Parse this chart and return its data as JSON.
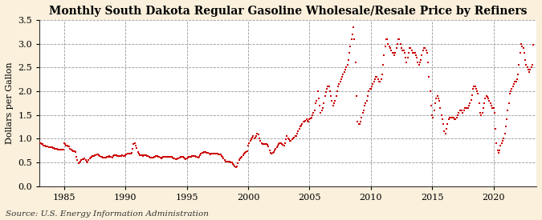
{
  "title": "Monthly South Dakota Regular Gasoline Wholesale/Resale Price by Refiners",
  "ylabel": "Dollars per Gallon",
  "source": "Source: U.S. Energy Information Administration",
  "xlim": [
    1983.0,
    2023.5
  ],
  "ylim": [
    0.0,
    3.5
  ],
  "yticks": [
    0.0,
    0.5,
    1.0,
    1.5,
    2.0,
    2.5,
    3.0,
    3.5
  ],
  "xticks": [
    1985,
    1990,
    1995,
    2000,
    2005,
    2010,
    2015,
    2020
  ],
  "bg_color": "#FAF0DC",
  "plot_bg_color": "#FFFFFF",
  "marker_color": "#CC0000",
  "marker": "s",
  "marker_size": 4.5,
  "title_fontsize": 10,
  "label_fontsize": 8,
  "tick_fontsize": 8,
  "source_fontsize": 7.5,
  "data": [
    [
      1983.0,
      0.92
    ],
    [
      1983.083,
      0.91
    ],
    [
      1983.167,
      0.89
    ],
    [
      1983.25,
      0.88
    ],
    [
      1983.333,
      0.86
    ],
    [
      1983.417,
      0.85
    ],
    [
      1983.5,
      0.84
    ],
    [
      1983.583,
      0.83
    ],
    [
      1983.667,
      0.83
    ],
    [
      1983.75,
      0.82
    ],
    [
      1983.833,
      0.82
    ],
    [
      1983.917,
      0.81
    ],
    [
      1984.0,
      0.81
    ],
    [
      1984.083,
      0.8
    ],
    [
      1984.167,
      0.8
    ],
    [
      1984.25,
      0.79
    ],
    [
      1984.333,
      0.78
    ],
    [
      1984.417,
      0.78
    ],
    [
      1984.5,
      0.77
    ],
    [
      1984.583,
      0.76
    ],
    [
      1984.667,
      0.76
    ],
    [
      1984.75,
      0.76
    ],
    [
      1984.833,
      0.76
    ],
    [
      1984.917,
      0.76
    ],
    [
      1985.0,
      0.9
    ],
    [
      1985.083,
      0.88
    ],
    [
      1985.167,
      0.86
    ],
    [
      1985.25,
      0.85
    ],
    [
      1985.333,
      0.84
    ],
    [
      1985.417,
      0.83
    ],
    [
      1985.5,
      0.78
    ],
    [
      1985.583,
      0.76
    ],
    [
      1985.667,
      0.75
    ],
    [
      1985.75,
      0.74
    ],
    [
      1985.833,
      0.73
    ],
    [
      1985.917,
      0.72
    ],
    [
      1986.0,
      0.62
    ],
    [
      1986.083,
      0.55
    ],
    [
      1986.167,
      0.48
    ],
    [
      1986.25,
      0.5
    ],
    [
      1986.333,
      0.52
    ],
    [
      1986.417,
      0.54
    ],
    [
      1986.5,
      0.56
    ],
    [
      1986.583,
      0.57
    ],
    [
      1986.667,
      0.58
    ],
    [
      1986.75,
      0.55
    ],
    [
      1986.833,
      0.52
    ],
    [
      1986.917,
      0.5
    ],
    [
      1987.0,
      0.55
    ],
    [
      1987.083,
      0.58
    ],
    [
      1987.167,
      0.6
    ],
    [
      1987.25,
      0.62
    ],
    [
      1987.333,
      0.63
    ],
    [
      1987.417,
      0.64
    ],
    [
      1987.5,
      0.65
    ],
    [
      1987.583,
      0.65
    ],
    [
      1987.667,
      0.66
    ],
    [
      1987.75,
      0.67
    ],
    [
      1987.833,
      0.65
    ],
    [
      1987.917,
      0.63
    ],
    [
      1988.0,
      0.62
    ],
    [
      1988.083,
      0.61
    ],
    [
      1988.167,
      0.6
    ],
    [
      1988.25,
      0.6
    ],
    [
      1988.333,
      0.6
    ],
    [
      1988.417,
      0.6
    ],
    [
      1988.5,
      0.61
    ],
    [
      1988.583,
      0.62
    ],
    [
      1988.667,
      0.63
    ],
    [
      1988.75,
      0.62
    ],
    [
      1988.833,
      0.61
    ],
    [
      1988.917,
      0.6
    ],
    [
      1989.0,
      0.63
    ],
    [
      1989.083,
      0.65
    ],
    [
      1989.167,
      0.65
    ],
    [
      1989.25,
      0.65
    ],
    [
      1989.333,
      0.64
    ],
    [
      1989.417,
      0.63
    ],
    [
      1989.5,
      0.63
    ],
    [
      1989.583,
      0.64
    ],
    [
      1989.667,
      0.64
    ],
    [
      1989.75,
      0.65
    ],
    [
      1989.833,
      0.64
    ],
    [
      1989.917,
      0.63
    ],
    [
      1990.0,
      0.65
    ],
    [
      1990.083,
      0.67
    ],
    [
      1990.167,
      0.68
    ],
    [
      1990.25,
      0.68
    ],
    [
      1990.333,
      0.68
    ],
    [
      1990.417,
      0.68
    ],
    [
      1990.5,
      0.7
    ],
    [
      1990.583,
      0.78
    ],
    [
      1990.667,
      0.88
    ],
    [
      1990.75,
      0.9
    ],
    [
      1990.833,
      0.85
    ],
    [
      1990.917,
      0.8
    ],
    [
      1991.0,
      0.72
    ],
    [
      1991.083,
      0.68
    ],
    [
      1991.167,
      0.65
    ],
    [
      1991.25,
      0.65
    ],
    [
      1991.333,
      0.65
    ],
    [
      1991.417,
      0.64
    ],
    [
      1991.5,
      0.65
    ],
    [
      1991.583,
      0.65
    ],
    [
      1991.667,
      0.65
    ],
    [
      1991.75,
      0.64
    ],
    [
      1991.833,
      0.63
    ],
    [
      1991.917,
      0.61
    ],
    [
      1992.0,
      0.6
    ],
    [
      1992.083,
      0.6
    ],
    [
      1992.167,
      0.6
    ],
    [
      1992.25,
      0.6
    ],
    [
      1992.333,
      0.61
    ],
    [
      1992.417,
      0.62
    ],
    [
      1992.5,
      0.63
    ],
    [
      1992.583,
      0.63
    ],
    [
      1992.667,
      0.62
    ],
    [
      1992.75,
      0.61
    ],
    [
      1992.833,
      0.6
    ],
    [
      1992.917,
      0.59
    ],
    [
      1993.0,
      0.6
    ],
    [
      1993.083,
      0.61
    ],
    [
      1993.167,
      0.62
    ],
    [
      1993.25,
      0.62
    ],
    [
      1993.333,
      0.62
    ],
    [
      1993.417,
      0.62
    ],
    [
      1993.5,
      0.62
    ],
    [
      1993.583,
      0.62
    ],
    [
      1993.667,
      0.62
    ],
    [
      1993.75,
      0.61
    ],
    [
      1993.833,
      0.6
    ],
    [
      1993.917,
      0.59
    ],
    [
      1994.0,
      0.58
    ],
    [
      1994.083,
      0.57
    ],
    [
      1994.167,
      0.57
    ],
    [
      1994.25,
      0.58
    ],
    [
      1994.333,
      0.59
    ],
    [
      1994.417,
      0.6
    ],
    [
      1994.5,
      0.62
    ],
    [
      1994.583,
      0.62
    ],
    [
      1994.667,
      0.61
    ],
    [
      1994.75,
      0.6
    ],
    [
      1994.833,
      0.59
    ],
    [
      1994.917,
      0.57
    ],
    [
      1995.0,
      0.58
    ],
    [
      1995.083,
      0.6
    ],
    [
      1995.167,
      0.62
    ],
    [
      1995.25,
      0.62
    ],
    [
      1995.333,
      0.62
    ],
    [
      1995.417,
      0.63
    ],
    [
      1995.5,
      0.64
    ],
    [
      1995.583,
      0.64
    ],
    [
      1995.667,
      0.63
    ],
    [
      1995.75,
      0.62
    ],
    [
      1995.833,
      0.61
    ],
    [
      1995.917,
      0.6
    ],
    [
      1996.0,
      0.62
    ],
    [
      1996.083,
      0.65
    ],
    [
      1996.167,
      0.68
    ],
    [
      1996.25,
      0.7
    ],
    [
      1996.333,
      0.7
    ],
    [
      1996.417,
      0.71
    ],
    [
      1996.5,
      0.71
    ],
    [
      1996.583,
      0.7
    ],
    [
      1996.667,
      0.7
    ],
    [
      1996.75,
      0.7
    ],
    [
      1996.833,
      0.68
    ],
    [
      1996.917,
      0.67
    ],
    [
      1997.0,
      0.68
    ],
    [
      1997.083,
      0.68
    ],
    [
      1997.167,
      0.68
    ],
    [
      1997.25,
      0.68
    ],
    [
      1997.333,
      0.68
    ],
    [
      1997.417,
      0.68
    ],
    [
      1997.5,
      0.68
    ],
    [
      1997.583,
      0.67
    ],
    [
      1997.667,
      0.67
    ],
    [
      1997.75,
      0.66
    ],
    [
      1997.833,
      0.64
    ],
    [
      1997.917,
      0.62
    ],
    [
      1998.0,
      0.58
    ],
    [
      1998.083,
      0.55
    ],
    [
      1998.167,
      0.52
    ],
    [
      1998.25,
      0.52
    ],
    [
      1998.333,
      0.52
    ],
    [
      1998.417,
      0.52
    ],
    [
      1998.5,
      0.51
    ],
    [
      1998.583,
      0.5
    ],
    [
      1998.667,
      0.49
    ],
    [
      1998.75,
      0.47
    ],
    [
      1998.833,
      0.45
    ],
    [
      1998.917,
      0.42
    ],
    [
      1999.0,
      0.4
    ],
    [
      1999.083,
      0.42
    ],
    [
      1999.167,
      0.48
    ],
    [
      1999.25,
      0.55
    ],
    [
      1999.333,
      0.58
    ],
    [
      1999.417,
      0.6
    ],
    [
      1999.5,
      0.62
    ],
    [
      1999.583,
      0.65
    ],
    [
      1999.667,
      0.68
    ],
    [
      1999.75,
      0.7
    ],
    [
      1999.833,
      0.72
    ],
    [
      1999.917,
      0.74
    ],
    [
      2000.0,
      0.85
    ],
    [
      2000.083,
      0.9
    ],
    [
      2000.167,
      0.95
    ],
    [
      2000.25,
      0.98
    ],
    [
      2000.333,
      1.02
    ],
    [
      2000.417,
      1.05
    ],
    [
      2000.5,
      1.0
    ],
    [
      2000.583,
      1.02
    ],
    [
      2000.667,
      1.05
    ],
    [
      2000.75,
      1.1
    ],
    [
      2000.833,
      1.08
    ],
    [
      2000.917,
      1.0
    ],
    [
      2001.0,
      0.95
    ],
    [
      2001.083,
      0.9
    ],
    [
      2001.167,
      0.88
    ],
    [
      2001.25,
      0.88
    ],
    [
      2001.333,
      0.88
    ],
    [
      2001.417,
      0.88
    ],
    [
      2001.5,
      0.88
    ],
    [
      2001.583,
      0.87
    ],
    [
      2001.667,
      0.83
    ],
    [
      2001.75,
      0.75
    ],
    [
      2001.833,
      0.7
    ],
    [
      2001.917,
      0.68
    ],
    [
      2002.0,
      0.7
    ],
    [
      2002.083,
      0.72
    ],
    [
      2002.167,
      0.75
    ],
    [
      2002.25,
      0.78
    ],
    [
      2002.333,
      0.82
    ],
    [
      2002.417,
      0.85
    ],
    [
      2002.5,
      0.88
    ],
    [
      2002.583,
      0.9
    ],
    [
      2002.667,
      0.9
    ],
    [
      2002.75,
      0.88
    ],
    [
      2002.833,
      0.87
    ],
    [
      2002.917,
      0.85
    ],
    [
      2003.0,
      0.9
    ],
    [
      2003.083,
      0.98
    ],
    [
      2003.167,
      1.05
    ],
    [
      2003.25,
      1.0
    ],
    [
      2003.333,
      0.98
    ],
    [
      2003.417,
      0.95
    ],
    [
      2003.5,
      0.95
    ],
    [
      2003.583,
      0.98
    ],
    [
      2003.667,
      1.0
    ],
    [
      2003.75,
      1.02
    ],
    [
      2003.833,
      1.05
    ],
    [
      2003.917,
      1.05
    ],
    [
      2004.0,
      1.1
    ],
    [
      2004.083,
      1.15
    ],
    [
      2004.167,
      1.2
    ],
    [
      2004.25,
      1.25
    ],
    [
      2004.333,
      1.28
    ],
    [
      2004.417,
      1.3
    ],
    [
      2004.5,
      1.35
    ],
    [
      2004.583,
      1.35
    ],
    [
      2004.667,
      1.38
    ],
    [
      2004.75,
      1.4
    ],
    [
      2004.833,
      1.38
    ],
    [
      2004.917,
      1.35
    ],
    [
      2005.0,
      1.4
    ],
    [
      2005.083,
      1.42
    ],
    [
      2005.167,
      1.45
    ],
    [
      2005.25,
      1.5
    ],
    [
      2005.333,
      1.55
    ],
    [
      2005.417,
      1.6
    ],
    [
      2005.5,
      1.75
    ],
    [
      2005.583,
      1.8
    ],
    [
      2005.667,
      2.0
    ],
    [
      2005.75,
      1.85
    ],
    [
      2005.833,
      1.7
    ],
    [
      2005.917,
      1.55
    ],
    [
      2006.0,
      1.6
    ],
    [
      2006.083,
      1.65
    ],
    [
      2006.167,
      1.75
    ],
    [
      2006.25,
      1.9
    ],
    [
      2006.333,
      1.98
    ],
    [
      2006.417,
      2.05
    ],
    [
      2006.5,
      2.1
    ],
    [
      2006.583,
      2.1
    ],
    [
      2006.667,
      2.0
    ],
    [
      2006.75,
      1.9
    ],
    [
      2006.833,
      1.8
    ],
    [
      2006.917,
      1.7
    ],
    [
      2007.0,
      1.75
    ],
    [
      2007.083,
      1.8
    ],
    [
      2007.167,
      1.9
    ],
    [
      2007.25,
      2.0
    ],
    [
      2007.333,
      2.1
    ],
    [
      2007.417,
      2.15
    ],
    [
      2007.5,
      2.2
    ],
    [
      2007.583,
      2.25
    ],
    [
      2007.667,
      2.3
    ],
    [
      2007.75,
      2.35
    ],
    [
      2007.833,
      2.4
    ],
    [
      2007.917,
      2.45
    ],
    [
      2008.0,
      2.5
    ],
    [
      2008.083,
      2.55
    ],
    [
      2008.167,
      2.65
    ],
    [
      2008.25,
      2.8
    ],
    [
      2008.333,
      2.95
    ],
    [
      2008.417,
      3.1
    ],
    [
      2008.5,
      3.2
    ],
    [
      2008.583,
      3.35
    ],
    [
      2008.667,
      3.1
    ],
    [
      2008.75,
      2.6
    ],
    [
      2008.833,
      1.9
    ],
    [
      2008.917,
      1.35
    ],
    [
      2009.0,
      1.3
    ],
    [
      2009.083,
      1.3
    ],
    [
      2009.167,
      1.35
    ],
    [
      2009.25,
      1.45
    ],
    [
      2009.333,
      1.55
    ],
    [
      2009.417,
      1.6
    ],
    [
      2009.5,
      1.7
    ],
    [
      2009.583,
      1.75
    ],
    [
      2009.667,
      1.8
    ],
    [
      2009.75,
      1.9
    ],
    [
      2009.833,
      2.0
    ],
    [
      2009.917,
      2.05
    ],
    [
      2010.0,
      2.05
    ],
    [
      2010.083,
      2.1
    ],
    [
      2010.167,
      2.15
    ],
    [
      2010.25,
      2.2
    ],
    [
      2010.333,
      2.25
    ],
    [
      2010.417,
      2.3
    ],
    [
      2010.5,
      2.3
    ],
    [
      2010.583,
      2.25
    ],
    [
      2010.667,
      2.2
    ],
    [
      2010.75,
      2.2
    ],
    [
      2010.833,
      2.25
    ],
    [
      2010.917,
      2.35
    ],
    [
      2011.0,
      2.55
    ],
    [
      2011.083,
      2.75
    ],
    [
      2011.167,
      2.95
    ],
    [
      2011.25,
      3.1
    ],
    [
      2011.333,
      3.1
    ],
    [
      2011.417,
      3.0
    ],
    [
      2011.5,
      2.95
    ],
    [
      2011.583,
      2.9
    ],
    [
      2011.667,
      2.85
    ],
    [
      2011.75,
      2.8
    ],
    [
      2011.833,
      2.8
    ],
    [
      2011.917,
      2.75
    ],
    [
      2012.0,
      2.8
    ],
    [
      2012.083,
      2.9
    ],
    [
      2012.167,
      3.0
    ],
    [
      2012.25,
      3.1
    ],
    [
      2012.333,
      3.1
    ],
    [
      2012.417,
      3.0
    ],
    [
      2012.5,
      2.9
    ],
    [
      2012.583,
      2.85
    ],
    [
      2012.667,
      2.85
    ],
    [
      2012.75,
      2.8
    ],
    [
      2012.833,
      2.7
    ],
    [
      2012.917,
      2.6
    ],
    [
      2013.0,
      2.7
    ],
    [
      2013.083,
      2.8
    ],
    [
      2013.167,
      2.9
    ],
    [
      2013.25,
      2.9
    ],
    [
      2013.333,
      2.85
    ],
    [
      2013.417,
      2.8
    ],
    [
      2013.5,
      2.8
    ],
    [
      2013.583,
      2.8
    ],
    [
      2013.667,
      2.75
    ],
    [
      2013.75,
      2.7
    ],
    [
      2013.833,
      2.6
    ],
    [
      2013.917,
      2.55
    ],
    [
      2014.0,
      2.6
    ],
    [
      2014.083,
      2.65
    ],
    [
      2014.167,
      2.75
    ],
    [
      2014.25,
      2.85
    ],
    [
      2014.333,
      2.9
    ],
    [
      2014.417,
      2.9
    ],
    [
      2014.5,
      2.85
    ],
    [
      2014.583,
      2.8
    ],
    [
      2014.667,
      2.6
    ],
    [
      2014.75,
      2.3
    ],
    [
      2014.833,
      2.0
    ],
    [
      2014.917,
      1.7
    ],
    [
      2015.0,
      1.5
    ],
    [
      2015.083,
      1.45
    ],
    [
      2015.167,
      1.6
    ],
    [
      2015.25,
      1.75
    ],
    [
      2015.333,
      1.85
    ],
    [
      2015.417,
      1.9
    ],
    [
      2015.5,
      1.85
    ],
    [
      2015.583,
      1.8
    ],
    [
      2015.667,
      1.65
    ],
    [
      2015.75,
      1.5
    ],
    [
      2015.833,
      1.4
    ],
    [
      2015.917,
      1.3
    ],
    [
      2016.0,
      1.15
    ],
    [
      2016.083,
      1.1
    ],
    [
      2016.167,
      1.2
    ],
    [
      2016.25,
      1.3
    ],
    [
      2016.333,
      1.4
    ],
    [
      2016.417,
      1.45
    ],
    [
      2016.5,
      1.45
    ],
    [
      2016.583,
      1.45
    ],
    [
      2016.667,
      1.45
    ],
    [
      2016.75,
      1.45
    ],
    [
      2016.833,
      1.4
    ],
    [
      2016.917,
      1.4
    ],
    [
      2017.0,
      1.45
    ],
    [
      2017.083,
      1.5
    ],
    [
      2017.167,
      1.55
    ],
    [
      2017.25,
      1.6
    ],
    [
      2017.333,
      1.6
    ],
    [
      2017.417,
      1.6
    ],
    [
      2017.5,
      1.55
    ],
    [
      2017.583,
      1.6
    ],
    [
      2017.667,
      1.65
    ],
    [
      2017.75,
      1.65
    ],
    [
      2017.833,
      1.65
    ],
    [
      2017.917,
      1.65
    ],
    [
      2018.0,
      1.7
    ],
    [
      2018.083,
      1.75
    ],
    [
      2018.167,
      1.82
    ],
    [
      2018.25,
      1.92
    ],
    [
      2018.333,
      2.05
    ],
    [
      2018.417,
      2.1
    ],
    [
      2018.5,
      2.1
    ],
    [
      2018.583,
      2.05
    ],
    [
      2018.667,
      2.0
    ],
    [
      2018.75,
      1.95
    ],
    [
      2018.833,
      1.75
    ],
    [
      2018.917,
      1.55
    ],
    [
      2019.0,
      1.5
    ],
    [
      2019.083,
      1.55
    ],
    [
      2019.167,
      1.65
    ],
    [
      2019.25,
      1.75
    ],
    [
      2019.333,
      1.85
    ],
    [
      2019.417,
      1.9
    ],
    [
      2019.5,
      1.88
    ],
    [
      2019.583,
      1.85
    ],
    [
      2019.667,
      1.8
    ],
    [
      2019.75,
      1.75
    ],
    [
      2019.833,
      1.7
    ],
    [
      2019.917,
      1.65
    ],
    [
      2020.0,
      1.65
    ],
    [
      2020.083,
      1.55
    ],
    [
      2020.167,
      1.2
    ],
    [
      2020.25,
      0.9
    ],
    [
      2020.333,
      0.75
    ],
    [
      2020.417,
      0.7
    ],
    [
      2020.5,
      0.75
    ],
    [
      2020.583,
      0.85
    ],
    [
      2020.667,
      0.9
    ],
    [
      2020.75,
      0.95
    ],
    [
      2020.833,
      1.0
    ],
    [
      2020.917,
      1.1
    ],
    [
      2021.0,
      1.25
    ],
    [
      2021.083,
      1.4
    ],
    [
      2021.167,
      1.6
    ],
    [
      2021.25,
      1.75
    ],
    [
      2021.333,
      1.95
    ],
    [
      2021.417,
      2.0
    ],
    [
      2021.5,
      2.05
    ],
    [
      2021.583,
      2.1
    ],
    [
      2021.667,
      2.15
    ],
    [
      2021.75,
      2.2
    ],
    [
      2021.833,
      2.2
    ],
    [
      2021.917,
      2.25
    ],
    [
      2022.0,
      2.35
    ],
    [
      2022.083,
      2.55
    ],
    [
      2022.167,
      2.8
    ],
    [
      2022.25,
      3.0
    ],
    [
      2022.333,
      2.95
    ],
    [
      2022.417,
      2.9
    ],
    [
      2022.5,
      2.8
    ],
    [
      2022.583,
      2.65
    ],
    [
      2022.667,
      2.55
    ],
    [
      2022.75,
      2.5
    ],
    [
      2022.833,
      2.45
    ],
    [
      2022.917,
      2.4
    ],
    [
      2023.0,
      2.45
    ],
    [
      2023.083,
      2.5
    ],
    [
      2023.167,
      2.55
    ],
    [
      2023.25,
      2.98
    ]
  ]
}
